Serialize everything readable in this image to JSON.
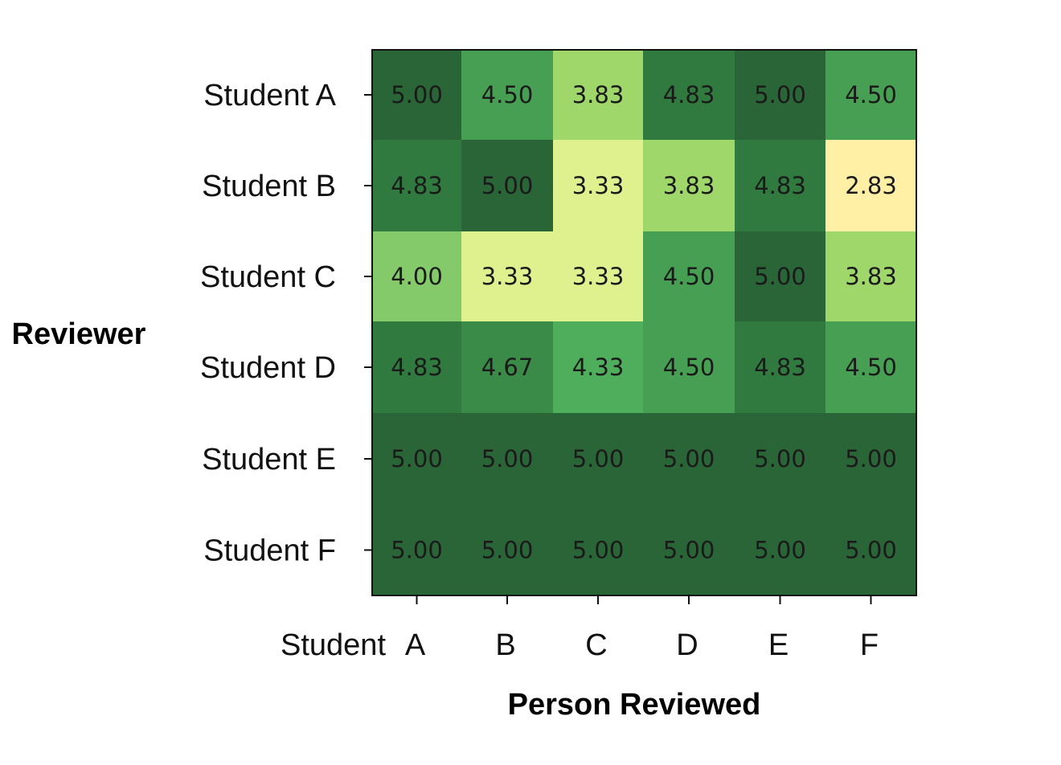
{
  "chart_data": {
    "type": "heatmap",
    "title": "",
    "xlabel": "Person Reviewed",
    "ylabel": "Reviewer",
    "x_tick_prefix": "Student",
    "x_categories": [
      "A",
      "B",
      "C",
      "D",
      "E",
      "F"
    ],
    "y_categories": [
      "Student A",
      "Student B",
      "Student C",
      "Student D",
      "Student E",
      "Student F"
    ],
    "values": [
      [
        5.0,
        4.5,
        3.83,
        4.83,
        5.0,
        4.5
      ],
      [
        4.83,
        5.0,
        3.33,
        3.83,
        4.83,
        2.83
      ],
      [
        4.0,
        3.33,
        3.33,
        4.5,
        5.0,
        3.83
      ],
      [
        4.83,
        4.67,
        4.33,
        4.5,
        4.83,
        4.5
      ],
      [
        5.0,
        5.0,
        5.0,
        5.0,
        5.0,
        5.0
      ],
      [
        5.0,
        5.0,
        5.0,
        5.0,
        5.0,
        5.0
      ]
    ],
    "value_format": "2 decimals",
    "colormap": "YlGn (yellow = low, dark green = high)",
    "color_stops": {
      "2.83": "#fff0a6",
      "3.33": "#dff18f",
      "3.83": "#9fd76b",
      "4.00": "#84c96a",
      "4.33": "#4fae5b",
      "4.50": "#479f53",
      "4.67": "#3a8b47",
      "4.83": "#317a3f",
      "5.00": "#2a6537"
    }
  }
}
